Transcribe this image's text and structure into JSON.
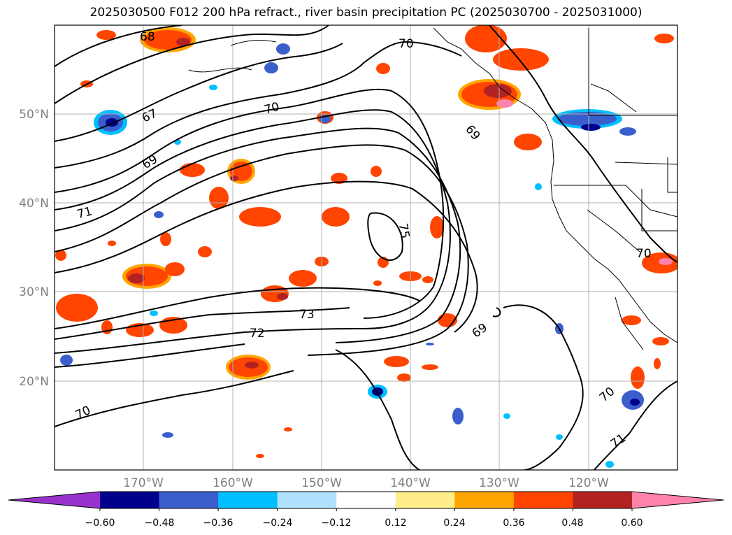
{
  "title": "2025030500 F012 200 hPa refract., river basin precipitation PC (2025030700 - 2025031000)",
  "lat_labels": [
    "50°N",
    "40°N",
    "30°N",
    "20°N"
  ],
  "lon_labels": [
    "170°W",
    "160°W",
    "150°W",
    "140°W",
    "130°W",
    "120°W"
  ],
  "contour_labels": [
    "68",
    "67",
    "69",
    "71",
    "70",
    "70",
    "69",
    "75",
    "73",
    "72",
    "69",
    "70",
    "70",
    "70",
    "71"
  ],
  "colorbar": {
    "ticks": [
      "−0.60",
      "−0.48",
      "−0.36",
      "−0.24",
      "−0.12",
      "0.12",
      "0.24",
      "0.36",
      "0.48",
      "0.60"
    ],
    "colors": [
      "#9932CC",
      "#00008B",
      "#3A5FCD",
      "#00BFFF",
      "#B0E2FF",
      "#FFFFFF",
      "#FFEC8B",
      "#FFA500",
      "#FF4500",
      "#B22222",
      "#FF82AB"
    ]
  },
  "colors": {
    "positive": [
      "#FFEC8B",
      "#FFA500",
      "#FF4500",
      "#B22222",
      "#FF82AB"
    ],
    "negative": [
      "#B0E2FF",
      "#00BFFF",
      "#3A5FCD",
      "#00008B",
      "#9932CC"
    ],
    "grid": "#b0b0b0",
    "contour": "#000000"
  }
}
